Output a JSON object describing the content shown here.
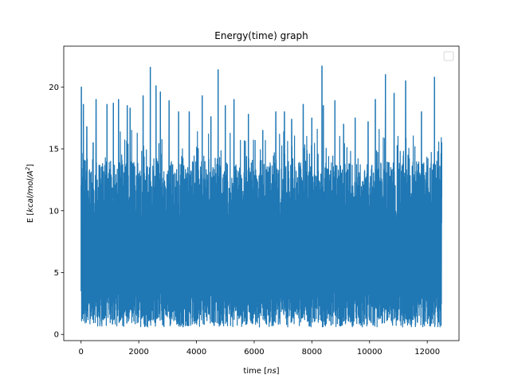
{
  "chart_data": {
    "type": "line",
    "title": "Energy(time) graph",
    "xlabel": {
      "prefix": "time [",
      "unit": "ns",
      "suffix": "]"
    },
    "ylabel": {
      "prefix": "E [",
      "unit": "kcal/mol/A",
      "sup": "2",
      "suffix": "]"
    },
    "xlim": [
      -600,
      13100
    ],
    "ylim": [
      -0.5,
      23.3
    ],
    "xticks": [
      0,
      2000,
      4000,
      6000,
      8000,
      10000,
      12000
    ],
    "xtick_labels": [
      "0",
      "2000",
      "4000",
      "6000",
      "8000",
      "10000",
      "12000"
    ],
    "yticks": [
      0,
      5,
      10,
      15,
      20
    ],
    "ytick_labels": [
      "0",
      "5",
      "10",
      "15",
      "20"
    ],
    "grid": false,
    "legend": {
      "placement": "top-right",
      "entries": []
    },
    "series": [
      {
        "color": "#1f77b4",
        "n_points": 12500,
        "x_range": [
          0,
          12500
        ],
        "baseline_range": [
          1.0,
          14.0
        ],
        "envelope_min": 0.6,
        "peaks": [
          [
            10,
            20.0
          ],
          [
            80,
            18.6
          ],
          [
            200,
            16.8
          ],
          [
            420,
            15.5
          ],
          [
            520,
            19.0
          ],
          [
            900,
            18.6
          ],
          [
            1120,
            18.7
          ],
          [
            1300,
            19.0
          ],
          [
            1600,
            18.5
          ],
          [
            1700,
            18.3
          ],
          [
            2150,
            19.3
          ],
          [
            2400,
            21.6
          ],
          [
            2600,
            20.1
          ],
          [
            2750,
            19.6
          ],
          [
            3050,
            18.9
          ],
          [
            3380,
            18.0
          ],
          [
            3750,
            18.0
          ],
          [
            4200,
            19.3
          ],
          [
            4500,
            17.6
          ],
          [
            4750,
            21.4
          ],
          [
            5000,
            18.5
          ],
          [
            5300,
            19.0
          ],
          [
            5800,
            17.8
          ],
          [
            6300,
            16.5
          ],
          [
            6750,
            18.0
          ],
          [
            7050,
            18.0
          ],
          [
            7300,
            17.4
          ],
          [
            7700,
            18.6
          ],
          [
            8000,
            17.5
          ],
          [
            8350,
            21.7
          ],
          [
            8400,
            18.5
          ],
          [
            8800,
            18.9
          ],
          [
            9100,
            17.0
          ],
          [
            9500,
            17.5
          ],
          [
            9950,
            17.2
          ],
          [
            10200,
            19.0
          ],
          [
            10550,
            21.0
          ],
          [
            10850,
            19.5
          ],
          [
            11250,
            20.5
          ],
          [
            11800,
            18.0
          ],
          [
            12250,
            20.8
          ],
          [
            12500,
            15.5
          ]
        ]
      }
    ]
  }
}
